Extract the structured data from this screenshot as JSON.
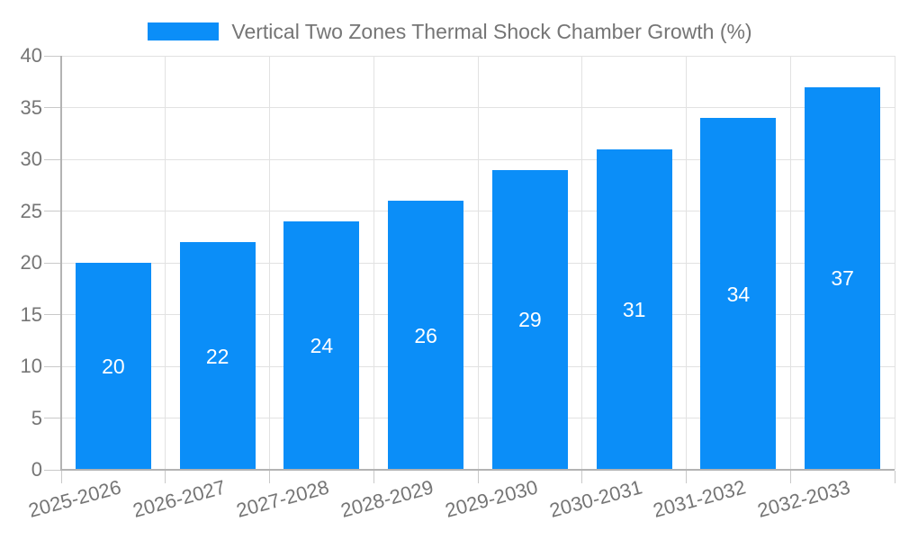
{
  "chart_data": {
    "type": "bar",
    "title": "Vertical Two Zones Thermal Shock Chamber Growth (%)",
    "categories": [
      "2025-2026",
      "2026-2027",
      "2027-2028",
      "2028-2029",
      "2029-2030",
      "2030-2031",
      "2031-2032",
      "2032-2033"
    ],
    "values": [
      20,
      22,
      24,
      26,
      29,
      31,
      34,
      37
    ],
    "series_name": "Vertical Two Zones Thermal Shock Chamber Growth (%)",
    "xlabel": "",
    "ylabel": "",
    "ylim": [
      0,
      40
    ],
    "ytick_step": 5,
    "yticks": [
      "0",
      "5",
      "10",
      "15",
      "20",
      "25",
      "30",
      "35",
      "40"
    ],
    "value_labels_shown": true,
    "grid": "on",
    "legend_position": "top-center",
    "x_label_rotation_deg": -15
  },
  "colors": {
    "bar": "#0b8ef8",
    "text": "#757575",
    "value_label_text": "#ffffff",
    "gridline": "#e2e2e2",
    "axis_line": "#b3b3b3",
    "tick": "#c9c9c9",
    "background": "#ffffff"
  }
}
